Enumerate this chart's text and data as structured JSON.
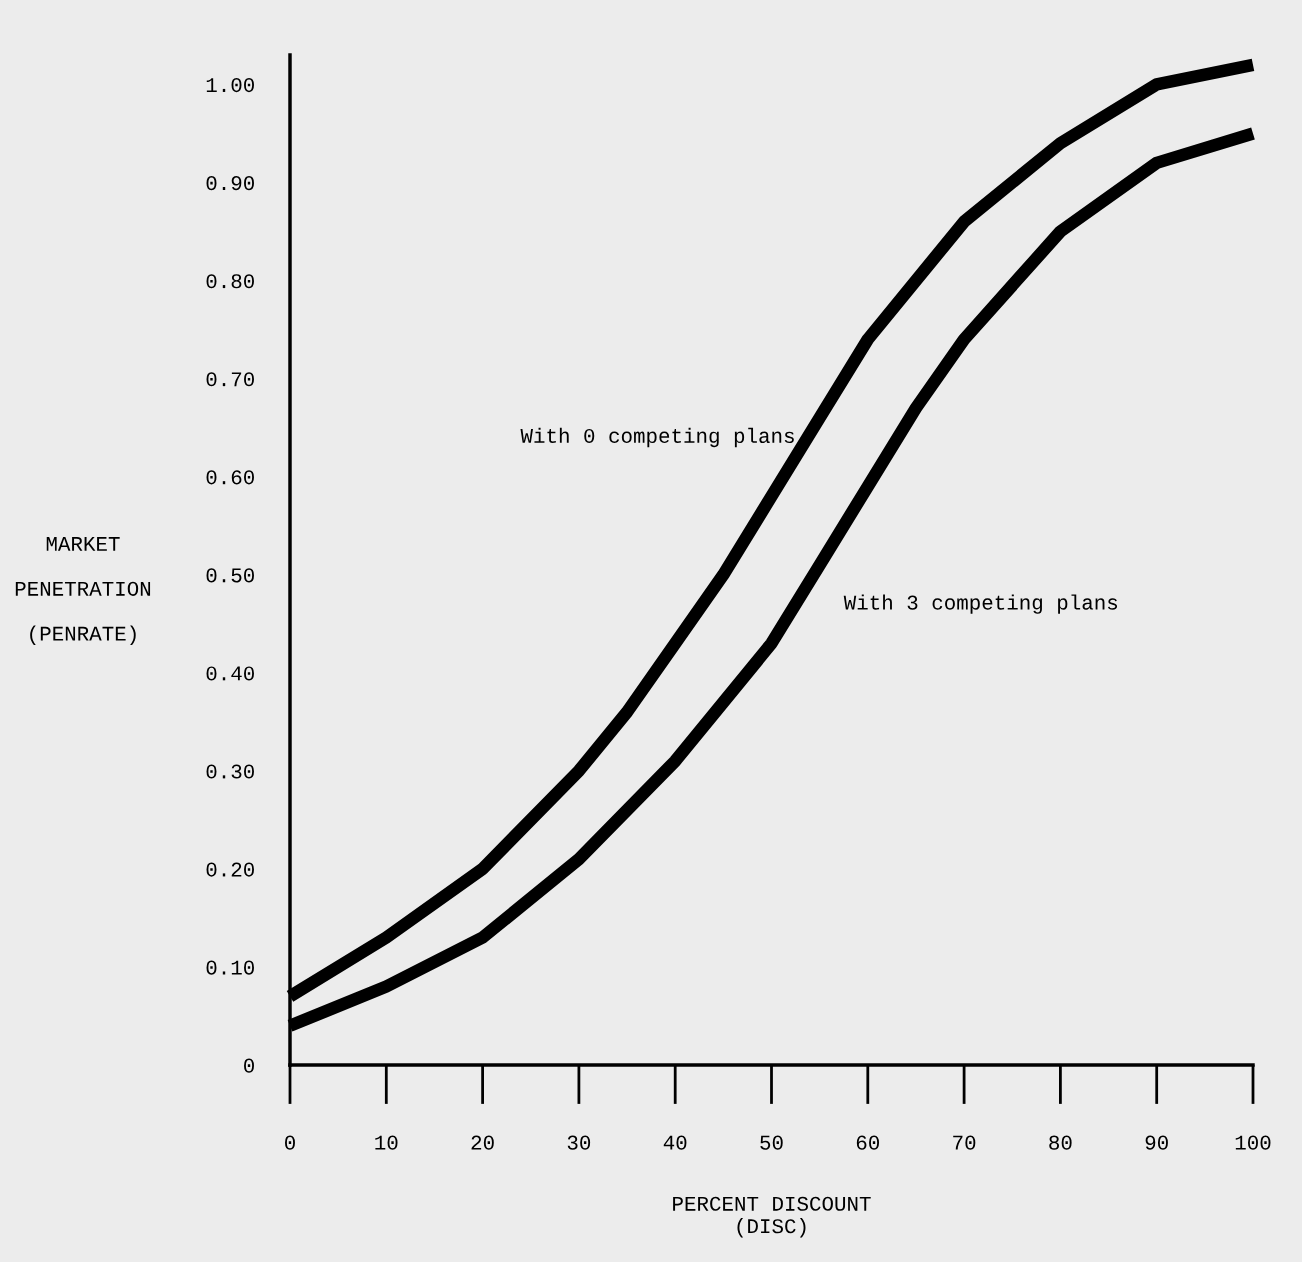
{
  "chart_data": {
    "type": "line",
    "xlabel": "PERCENT DISCOUNT\n(DISC)",
    "ylabel": "MARKET\n\nPENETRATION\n\n(PENRATE)",
    "xlim": [
      0,
      100
    ],
    "xticks": [
      0,
      10,
      20,
      30,
      40,
      50,
      60,
      70,
      80,
      90,
      100
    ],
    "ylim": [
      0,
      1.03
    ],
    "yticks": [
      0,
      {
        "value": 0.1,
        "label": "0.10"
      },
      {
        "value": 0.2,
        "label": "0.20"
      },
      {
        "value": 0.3,
        "label": "0.30"
      },
      {
        "value": 0.4,
        "label": "0.40"
      },
      {
        "value": 0.5,
        "label": "0.50"
      },
      {
        "value": 0.6,
        "label": "0.60"
      },
      {
        "value": 0.7,
        "label": "0.70"
      },
      {
        "value": 0.8,
        "label": "0.80"
      },
      {
        "value": 0.9,
        "label": "0.90"
      },
      {
        "value": 1.0,
        "label": "1.00"
      }
    ],
    "grid": false,
    "legend": false,
    "marker": "none",
    "line_style": "solid",
    "series": [
      {
        "name": "With 0 competing plans",
        "color": "#000000",
        "x": [
          0,
          10,
          20,
          30,
          35,
          40,
          45,
          50,
          55,
          60,
          70,
          80,
          90,
          100
        ],
        "values": [
          0.07,
          0.13,
          0.2,
          0.3,
          0.36,
          0.43,
          0.5,
          0.58,
          0.66,
          0.74,
          0.86,
          0.94,
          1.0,
          1.02
        ]
      },
      {
        "name": "With 3 competing plans",
        "color": "#000000",
        "x": [
          0,
          10,
          20,
          30,
          40,
          45,
          50,
          55,
          60,
          65,
          70,
          80,
          90,
          100
        ],
        "values": [
          0.04,
          0.08,
          0.13,
          0.21,
          0.31,
          0.37,
          0.43,
          0.51,
          0.59,
          0.67,
          0.74,
          0.85,
          0.92,
          0.95
        ]
      }
    ]
  }
}
